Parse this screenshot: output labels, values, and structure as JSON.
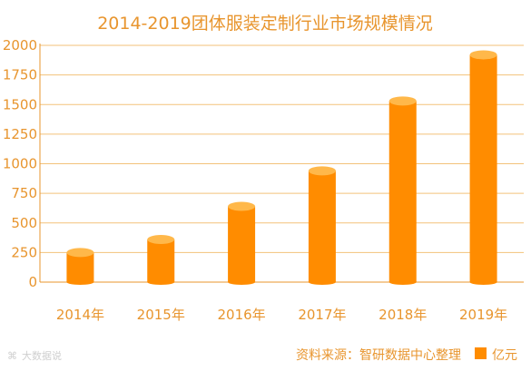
{
  "colors": {
    "text": "#e8952e",
    "bar_body": "#ff8c00",
    "bar_cap": "#ffb84a",
    "axis": "#e8952e",
    "grid": "#f3c27a"
  },
  "source_text": "资料来源：智研数据中心整理",
  "watermark": "大数据说",
  "chart_data": {
    "type": "bar",
    "title": "2014-2019团体服装定制行业市场规模情况",
    "categories": [
      "2014年",
      "2015年",
      "2016年",
      "2017年",
      "2018年",
      "2019年"
    ],
    "series": [
      {
        "name": "亿元",
        "values": [
          250,
          360,
          640,
          940,
          1530,
          1920
        ]
      }
    ],
    "y_ticks": [
      "0",
      "250",
      "500",
      "750",
      "1000",
      "1250",
      "1500",
      "1750",
      "2000"
    ],
    "ylim": [
      0,
      2000
    ],
    "xlabel": "",
    "ylabel": "",
    "grid": true,
    "legend_position": "bottom-right"
  }
}
